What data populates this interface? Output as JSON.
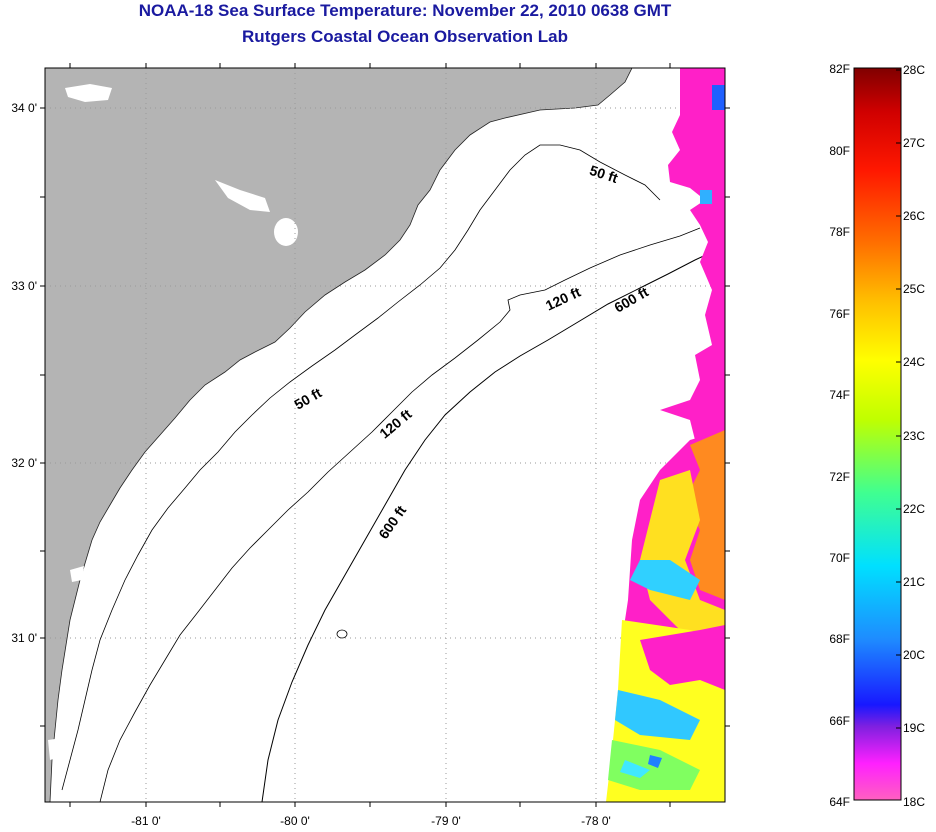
{
  "header": {
    "title": "NOAA-18 Sea Surface Temperature:  November 22, 2010 0638 GMT",
    "subtitle": "Rutgers Coastal Ocean Observation Lab"
  },
  "map": {
    "lat_labels": [
      "34 0'",
      "33 0'",
      "32 0'",
      "31 0'"
    ],
    "lon_labels": [
      "-81 0'",
      "-80 0'",
      "-79 0'",
      "-78 0'"
    ],
    "contour_labels": [
      "50 ft",
      "120 ft",
      "600 ft",
      "50 ft",
      "120 ft",
      "600 ft"
    ],
    "colors": {
      "land": "#b4b4b4",
      "ocean": "#ffffff",
      "grid": "#9a9a9a",
      "contour": "#000000"
    }
  },
  "colorbar": {
    "f_labels": [
      "82F",
      "80F",
      "78F",
      "76F",
      "74F",
      "72F",
      "70F",
      "68F",
      "66F",
      "64F"
    ],
    "c_labels": [
      "28C",
      "27C",
      "26C",
      "25C",
      "24C",
      "23C",
      "22C",
      "21C",
      "20C",
      "19C",
      "18C"
    ],
    "min_f": 64,
    "max_f": 82,
    "stops": [
      "#ff60c0",
      "#ff20ff",
      "#8020e0",
      "#1818ff",
      "#1e8cff",
      "#00e0ff",
      "#40ff90",
      "#c0ff00",
      "#ffff00",
      "#ffc000",
      "#ff7000",
      "#ff1800",
      "#d00000",
      "#800000"
    ]
  }
}
